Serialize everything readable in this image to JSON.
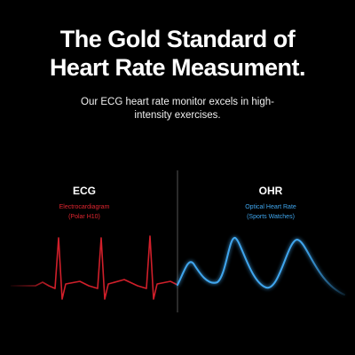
{
  "header": {
    "title_lines": [
      "The Gold Standard of",
      "Heart Rate Measument."
    ],
    "subtitle_lines": [
      "Our ECG heart rate monitor excels in high-",
      "intensity exercises."
    ]
  },
  "panels": [
    {
      "label": "ECG",
      "description": [
        "Electrocardiagram",
        "(Polar H10)"
      ]
    },
    {
      "label": "OHR",
      "description": [
        "Optical Heart Rate",
        "(Sports Watches)"
      ]
    }
  ]
}
